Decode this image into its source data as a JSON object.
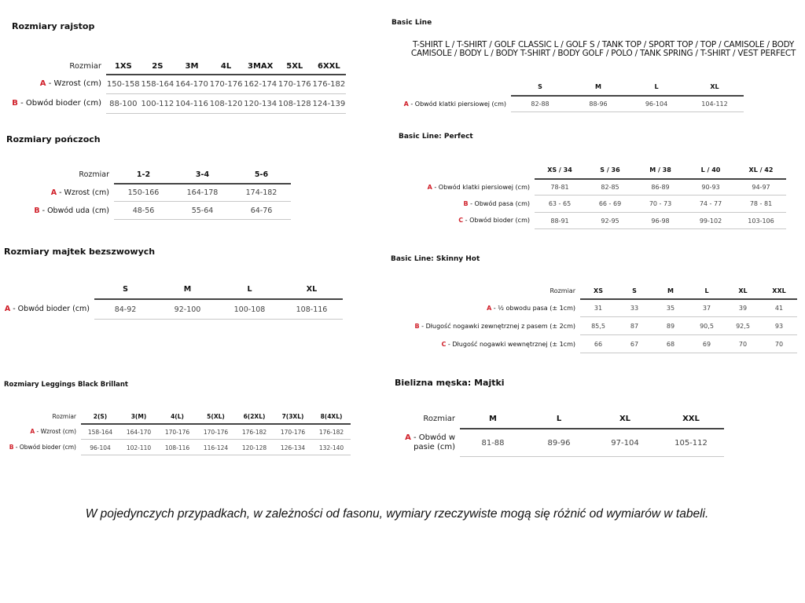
{
  "tables": [
    {
      "id": "rajstop",
      "title": "Rozmiary rajstop",
      "corner": "Rozmiar",
      "columns": [
        "1XS",
        "2S",
        "3M",
        "4L",
        "3MAX",
        "5XL",
        "6XXL"
      ],
      "rows": [
        {
          "letter": "A",
          "label": " - Wzrost (cm)",
          "values": [
            "150-158",
            "158-164",
            "164-170",
            "170-176",
            "162-174",
            "170-176",
            "176-182"
          ]
        },
        {
          "letter": "B",
          "label": " - Obwód bioder (cm)",
          "values": [
            "88-100",
            "100-112",
            "104-116",
            "108-120",
            "120-134",
            "108-128",
            "124-139"
          ]
        }
      ]
    },
    {
      "id": "ponczoch",
      "title": "Rozmiary pończoch",
      "corner": "Rozmiar",
      "columns": [
        "1-2",
        "3-4",
        "5-6"
      ],
      "rows": [
        {
          "letter": "A",
          "label": " - Wzrost (cm)",
          "values": [
            "150-166",
            "164-178",
            "174-182"
          ]
        },
        {
          "letter": "B",
          "label": " - Obwód uda (cm)",
          "values": [
            "48-56",
            "55-64",
            "64-76"
          ]
        }
      ]
    },
    {
      "id": "majtek",
      "title": "Rozmiary majtek bezszwowych",
      "corner": "",
      "columns": [
        "S",
        "M",
        "L",
        "XL"
      ],
      "rows": [
        {
          "letter": "A",
          "label": " - Obwód bioder (cm)",
          "values": [
            "84-92",
            "92-100",
            "100-108",
            "108-116"
          ]
        }
      ]
    },
    {
      "id": "leggings",
      "title": "Rozmiary Leggings Black Brillant",
      "corner": "Rozmiar",
      "columns": [
        "2(S)",
        "3(M)",
        "4(L)",
        "5(XL)",
        "6(2XL)",
        "7(3XL)",
        "8(4XL)"
      ],
      "rows": [
        {
          "letter": "A",
          "label": " - Wzrost (cm)",
          "values": [
            "158-164",
            "164-170",
            "170-176",
            "170-176",
            "176-182",
            "170-176",
            "176-182"
          ]
        },
        {
          "letter": "B",
          "label": " - Obwód bioder (cm)",
          "values": [
            "96-104",
            "102-110",
            "108-116",
            "116-124",
            "120-128",
            "126-134",
            "132-140"
          ]
        }
      ]
    },
    {
      "id": "basic",
      "title": "Basic Line",
      "corner": "",
      "columns": [
        "S",
        "M",
        "L",
        "XL"
      ],
      "rows": [
        {
          "letter": "A",
          "label": " - Obwód klatki piersiowej (cm)",
          "values": [
            "82-88",
            "88-96",
            "96-104",
            "104-112"
          ]
        }
      ]
    },
    {
      "id": "perfect",
      "title": "Basic Line: Perfect",
      "corner": "",
      "columns": [
        "XS / 34",
        "S / 36",
        "M / 38",
        "L / 40",
        "XL / 42"
      ],
      "rows": [
        {
          "letter": "A",
          "label": " - Obwód klatki piersiowej (cm)",
          "values": [
            "78-81",
            "82-85",
            "86-89",
            "90-93",
            "94-97"
          ]
        },
        {
          "letter": "B",
          "label": " - Obwód pasa (cm)",
          "values": [
            "63 - 65",
            "66 - 69",
            "70 - 73",
            "74 - 77",
            "78 - 81"
          ]
        },
        {
          "letter": "C",
          "label": " - Obwód bioder (cm)",
          "values": [
            "88-91",
            "92-95",
            "96-98",
            "99-102",
            "103-106"
          ]
        }
      ]
    },
    {
      "id": "skinny",
      "title": "Basic Line: Skinny Hot",
      "corner": "Rozmiar",
      "columns": [
        "XS",
        "S",
        "M",
        "L",
        "XL",
        "XXL"
      ],
      "rows": [
        {
          "letter": "A",
          "label": " - ½ obwodu pasa (± 1cm)",
          "values": [
            "31",
            "33",
            "35",
            "37",
            "39",
            "41"
          ]
        },
        {
          "letter": "B",
          "label": " - Długość nogawki zewnętrznej z pasem (± 2cm)",
          "values": [
            "85,5",
            "87",
            "89",
            "90,5",
            "92,5",
            "93"
          ]
        },
        {
          "letter": "C",
          "label": " - Długość nogawki wewnętrznej (± 1cm)",
          "values": [
            "66",
            "67",
            "68",
            "69",
            "70",
            "70"
          ]
        }
      ]
    },
    {
      "id": "meska",
      "title": "Bielizna męska: Majtki",
      "corner": "Rozmiar",
      "columns": [
        "M",
        "L",
        "XL",
        "XXL"
      ],
      "rows": [
        {
          "letter": "A",
          "label": " - Obwód w pasie (cm)",
          "values": [
            "81-88",
            "89-96",
            "97-104",
            "105-112"
          ]
        }
      ]
    }
  ],
  "basic_line_products": "T-SHIRT L / T-SHIRT / GOLF CLASSIC L / GOLF S / TANK TOP / SPORT TOP / TOP / CAMISOLE / BODY CAMISOLE / BODY L / BODY T-SHIRT / BODY GOLF / POLO / TANK SPRING / T-SHIRT / VEST PERFECT",
  "footer_note": "W pojedynczych przypadkach, w zależności od fasonu, wymiary rzeczywiste mogą się różnić od wymiarów w tabeli.",
  "colors": {
    "letter_accent": "#d0202a",
    "header_rule": "#444444",
    "row_rule": "#c8c8c8"
  }
}
